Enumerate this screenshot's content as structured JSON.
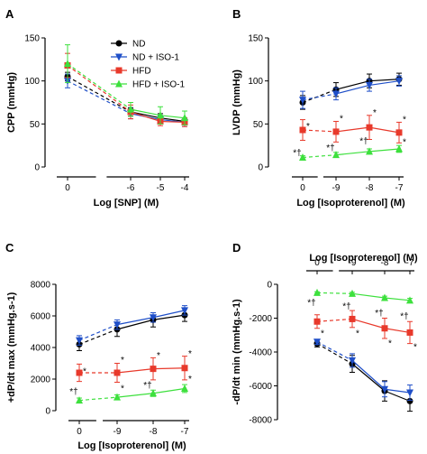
{
  "chart_data": [
    {
      "panel": "A",
      "type": "line",
      "xlabel": "Log [SNP] (M)",
      "ylabel": "CPP (mmHg)",
      "x_ticks": [
        "0",
        "-6",
        "-5",
        "-4"
      ],
      "ylim": [
        0,
        150
      ],
      "y_ticks": [
        0,
        50,
        100,
        150
      ],
      "series": [
        {
          "name": "ND",
          "color": "#000000",
          "marker": "circle",
          "values": [
            105,
            64,
            57,
            53
          ],
          "errors": [
            5,
            5,
            5,
            4
          ]
        },
        {
          "name": "ND + ISO-1",
          "color": "#1f4fc8",
          "marker": "triangle-down",
          "values": [
            100,
            62,
            55,
            52
          ],
          "errors": [
            8,
            6,
            5,
            5
          ]
        },
        {
          "name": "HFD",
          "color": "#e8392b",
          "marker": "square",
          "values": [
            118,
            64,
            53,
            52
          ],
          "errors": [
            14,
            8,
            5,
            5
          ]
        },
        {
          "name": "HFD + ISO-1",
          "color": "#3de03d",
          "marker": "triangle-up",
          "values": [
            120,
            67,
            60,
            57
          ],
          "errors": [
            22,
            8,
            10,
            8
          ]
        }
      ],
      "legend": [
        "ND",
        "ND + ISO-1",
        "HFD",
        "HFD + ISO-1"
      ],
      "legend_position": "top-right",
      "annotations": []
    },
    {
      "panel": "B",
      "type": "line",
      "xlabel": "Log [Isoproterenol] (M)",
      "ylabel": "LVDP (mmHg)",
      "x_ticks": [
        "0",
        "-9",
        "-8",
        "-7"
      ],
      "ylim": [
        0,
        150
      ],
      "y_ticks": [
        0,
        50,
        100,
        150
      ],
      "series": [
        {
          "name": "ND",
          "color": "#000000",
          "marker": "circle",
          "values": [
            75,
            90,
            100,
            102
          ],
          "errors": [
            8,
            8,
            8,
            7
          ]
        },
        {
          "name": "ND + ISO-1",
          "color": "#1f4fc8",
          "marker": "triangle-down",
          "values": [
            78,
            85,
            95,
            100
          ],
          "errors": [
            10,
            7,
            7,
            6
          ]
        },
        {
          "name": "HFD",
          "color": "#e8392b",
          "marker": "square",
          "values": [
            43,
            41,
            46,
            40
          ],
          "errors": [
            12,
            12,
            14,
            12
          ]
        },
        {
          "name": "HFD + ISO-1",
          "color": "#3de03d",
          "marker": "triangle-up",
          "values": [
            11,
            14,
            18,
            21
          ],
          "errors": [
            2,
            3,
            3,
            4
          ]
        }
      ],
      "annotations": [
        {
          "text": "*",
          "x": "0",
          "y": 47
        },
        {
          "text": "*",
          "x": "-9",
          "y": 56
        },
        {
          "text": "*",
          "x": "-8",
          "y": 63
        },
        {
          "text": "*",
          "x": "-7",
          "y": 55
        },
        {
          "text": "*†",
          "x": "0",
          "y": 16
        },
        {
          "text": "*†",
          "x": "-9",
          "y": 22
        },
        {
          "text": "*†",
          "x": "-8",
          "y": 30
        },
        {
          "text": "*",
          "x": "-7",
          "y": 29
        }
      ]
    },
    {
      "panel": "C",
      "type": "line",
      "xlabel": "Log [Isoproterenol] (M)",
      "ylabel": "+dP/dt max (mmHg.s-1)",
      "x_ticks": [
        "0",
        "-9",
        "-8",
        "-7"
      ],
      "ylim": [
        0,
        8000
      ],
      "y_ticks": [
        0,
        2000,
        4000,
        6000,
        8000
      ],
      "series": [
        {
          "name": "ND",
          "color": "#000000",
          "marker": "circle",
          "values": [
            4200,
            5150,
            5750,
            6050
          ],
          "errors": [
            400,
            450,
            450,
            400
          ]
        },
        {
          "name": "ND + ISO-1",
          "color": "#1f4fc8",
          "marker": "triangle-down",
          "values": [
            4450,
            5450,
            5900,
            6350
          ],
          "errors": [
            300,
            300,
            300,
            300
          ]
        },
        {
          "name": "HFD",
          "color": "#e8392b",
          "marker": "square",
          "values": [
            2400,
            2400,
            2650,
            2700
          ],
          "errors": [
            550,
            600,
            700,
            750
          ]
        },
        {
          "name": "HFD + ISO-1",
          "color": "#3de03d",
          "marker": "triangle-up",
          "values": [
            650,
            850,
            1100,
            1400
          ],
          "errors": [
            150,
            150,
            200,
            250
          ]
        }
      ],
      "annotations": [
        {
          "text": "*",
          "x": "0",
          "y": 2500
        },
        {
          "text": "*",
          "x": "-9",
          "y": 3200
        },
        {
          "text": "*",
          "x": "-8",
          "y": 3500
        },
        {
          "text": "*",
          "x": "-7",
          "y": 3600
        },
        {
          "text": "*†",
          "x": "0",
          "y": 1200
        },
        {
          "text": "*",
          "x": "-9",
          "y": 1400
        },
        {
          "text": "*†",
          "x": "-8",
          "y": 1600
        },
        {
          "text": "*",
          "x": "-7",
          "y": 2000
        }
      ]
    },
    {
      "panel": "D",
      "type": "line",
      "xlabel": "Log [Isoproterenol] (M)",
      "x_axis_position": "top",
      "ylabel": "-dP/dt min (mmHg.s-1)",
      "x_ticks": [
        "0",
        "-9",
        "-8",
        "-7"
      ],
      "ylim": [
        -8000,
        0
      ],
      "y_ticks": [
        0,
        -2000,
        -4000,
        -6000,
        -8000
      ],
      "series": [
        {
          "name": "ND",
          "color": "#000000",
          "marker": "circle",
          "values": [
            -3500,
            -4700,
            -6300,
            -6900
          ],
          "errors": [
            200,
            500,
            600,
            600
          ]
        },
        {
          "name": "ND + ISO-1",
          "color": "#1f4fc8",
          "marker": "triangle-down",
          "values": [
            -3400,
            -4500,
            -6200,
            -6400
          ],
          "errors": [
            150,
            400,
            450,
            450
          ]
        },
        {
          "name": "HFD",
          "color": "#e8392b",
          "marker": "square",
          "values": [
            -2200,
            -2050,
            -2600,
            -2850
          ],
          "errors": [
            400,
            500,
            600,
            650
          ]
        },
        {
          "name": "HFD + ISO-1",
          "color": "#3de03d",
          "marker": "triangle-up",
          "values": [
            -500,
            -550,
            -800,
            -950
          ],
          "errors": [
            60,
            80,
            100,
            120
          ]
        }
      ],
      "annotations": [
        {
          "text": "*†",
          "x": "0",
          "y": -1100
        },
        {
          "text": "*†",
          "x": "-9",
          "y": -1300
        },
        {
          "text": "*†",
          "x": "-8",
          "y": -1700
        },
        {
          "text": "*†",
          "x": "-7",
          "y": -1900
        },
        {
          "text": "*",
          "x": "0",
          "y": -2900
        },
        {
          "text": "*",
          "x": "-9",
          "y": -2900
        },
        {
          "text": "*",
          "x": "-8",
          "y": -3500
        },
        {
          "text": "*",
          "x": "-7",
          "y": -3700
        }
      ]
    }
  ]
}
